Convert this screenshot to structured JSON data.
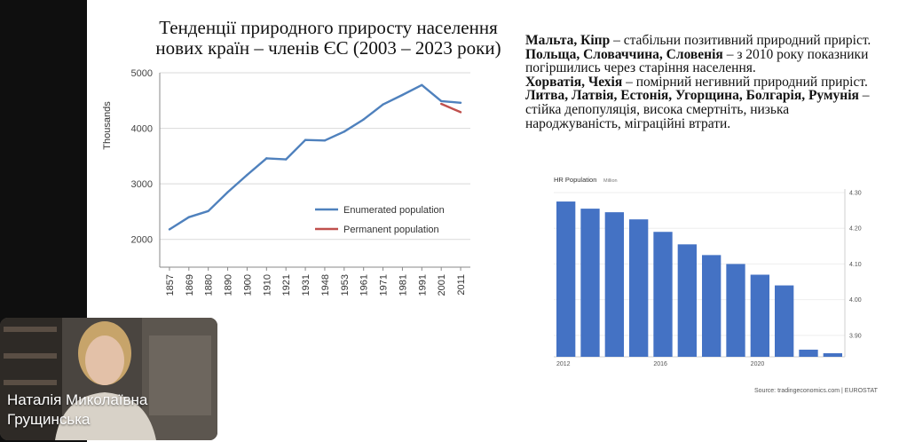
{
  "slide": {
    "title_line1": "Тенденції природного приросту населення",
    "title_line2": "нових країн – членів ЄС (2003 – 2023 роки)"
  },
  "text_blocks": [
    {
      "bold": "Мальта, Кіпр",
      "rest": " – стабільни позитивний природний приріст."
    },
    {
      "bold": "Польща, Словаччина, Словенія",
      "rest": " – з 2010 року показники погіршились через старіння населення."
    },
    {
      "bold": "Хорватія, Чехія",
      "rest": " – помірний негивний природний приріст."
    },
    {
      "bold": "Литва, Латвія, Естонія, Угорщина, Болгарія, Румунія",
      "rest": " – стійка депопуляція, висока смертніть, низька народжуваність, міграційні втрати."
    }
  ],
  "chart_data": [
    {
      "type": "line",
      "title": "",
      "xlabel": "",
      "ylabel": "Thousands",
      "x": [
        "1857",
        "1869",
        "1880",
        "1890",
        "1900",
        "1910",
        "1921",
        "1931",
        "1948",
        "1953",
        "1961",
        "1971",
        "1981",
        "1991",
        "2001",
        "2011"
      ],
      "ylim": [
        1500,
        5000
      ],
      "yticks": [
        2000,
        3000,
        4000,
        5000
      ],
      "grid": true,
      "legend_position": "bottom-right",
      "series": [
        {
          "name": "Enumerated population",
          "color": "#4f81bd",
          "values": [
            2180,
            2400,
            2510,
            2850,
            3160,
            3460,
            3440,
            3790,
            3780,
            3940,
            4160,
            4430,
            4600,
            4780,
            4490,
            4460
          ]
        },
        {
          "name": "Permanent population",
          "color": "#c0504d",
          "values": [
            null,
            null,
            null,
            null,
            null,
            null,
            null,
            null,
            null,
            null,
            null,
            null,
            null,
            null,
            4440,
            4290
          ]
        }
      ]
    },
    {
      "type": "bar",
      "title": "HR Population",
      "subtitle": "Million",
      "color": "#4472c4",
      "x_tick_labels": [
        {
          "index": 0,
          "label": "2012"
        },
        {
          "index": 4,
          "label": "2016"
        },
        {
          "index": 8,
          "label": "2020"
        }
      ],
      "categories": [
        "2012",
        "2013",
        "2014",
        "2015",
        "2016",
        "2017",
        "2018",
        "2019",
        "2020",
        "2021",
        "2022",
        "2023"
      ],
      "values": [
        4.275,
        4.255,
        4.245,
        4.225,
        4.19,
        4.155,
        4.125,
        4.1,
        4.07,
        4.04,
        3.86,
        3.85
      ],
      "ylim": [
        3.84,
        4.3
      ],
      "yticks": [
        3.9,
        4.0,
        4.1,
        4.2,
        4.3
      ],
      "axis_side": "right",
      "source": "Source: tradingeconomics.com | EUROSTAT"
    }
  ],
  "participant": {
    "name_line1": "Наталія Миколаївна",
    "name_line2": "Грущинська"
  }
}
